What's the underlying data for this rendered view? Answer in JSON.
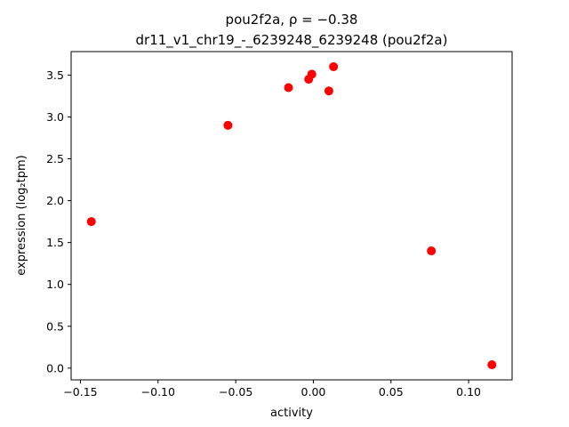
{
  "chart_data": {
    "type": "scatter",
    "title": "pou2f2a, ρ = −0.38",
    "subtitle": "dr11_v1_chr19_-_6239248_6239248 (pou2f2a)",
    "xlabel": "activity",
    "ylabel": "expression (log₂tpm)",
    "xlim": [
      -0.156,
      0.128
    ],
    "ylim": [
      -0.14,
      3.78
    ],
    "xticks": [
      -0.15,
      -0.1,
      -0.05,
      0.0,
      0.05,
      0.1
    ],
    "yticks": [
      0.0,
      0.5,
      1.0,
      1.5,
      2.0,
      2.5,
      3.0,
      3.5
    ],
    "grid": false,
    "legend": null,
    "marker": {
      "shape": "circle",
      "color": "#ff0000",
      "radius_px": 5
    },
    "points": [
      {
        "x": -0.143,
        "y": 1.75
      },
      {
        "x": -0.055,
        "y": 2.9
      },
      {
        "x": -0.016,
        "y": 3.35
      },
      {
        "x": -0.003,
        "y": 3.45
      },
      {
        "x": -0.001,
        "y": 3.51
      },
      {
        "x": 0.01,
        "y": 3.31
      },
      {
        "x": 0.013,
        "y": 3.6
      },
      {
        "x": 0.076,
        "y": 1.4
      },
      {
        "x": 0.115,
        "y": 0.04
      }
    ]
  }
}
